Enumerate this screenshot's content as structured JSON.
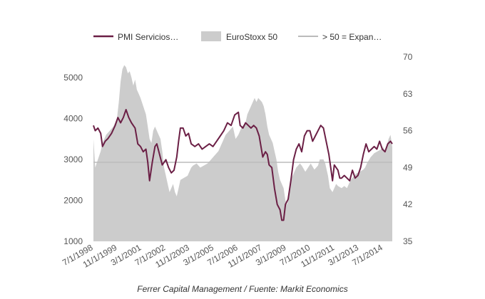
{
  "chart_data": {
    "type": "line",
    "title": "",
    "source": "Ferrer Capital Management / Fuente: Markit Economics",
    "legend": {
      "placement": "top",
      "entries": [
        {
          "label": "PMI Servicios…",
          "kind": "line",
          "color": "#6b1f45"
        },
        {
          "label": "EuroStoxx 50",
          "kind": "area",
          "color": "#cccccc"
        },
        {
          "label": "> 50 = Expan…",
          "kind": "line",
          "color": "#bbbbbb"
        }
      ]
    },
    "y_left": {
      "min": 1000,
      "max": 5500,
      "ticks": [
        "5000",
        "4000",
        "3000",
        "2000",
        "1000"
      ],
      "tick_values": [
        5000,
        4000,
        3000,
        2000,
        1000
      ]
    },
    "y_right": {
      "min": 35,
      "max": 70,
      "ticks": [
        "70",
        "63",
        "56",
        "49",
        "42",
        "35"
      ],
      "tick_values": [
        70,
        63,
        56,
        49,
        42,
        35
      ]
    },
    "x_ticks": [
      {
        "label": "7/1/1998",
        "t": 1998.5
      },
      {
        "label": "11/1/1999",
        "t": 1999.83
      },
      {
        "label": "3/1/2001",
        "t": 2001.17
      },
      {
        "label": "7/1/2002",
        "t": 2002.5
      },
      {
        "label": "11/1/2003",
        "t": 2003.83
      },
      {
        "label": "3/1/2005",
        "t": 2005.17
      },
      {
        "label": "7/1/2006",
        "t": 2006.5
      },
      {
        "label": "11/1/2007",
        "t": 2007.83
      },
      {
        "label": "3/1/2009",
        "t": 2009.17
      },
      {
        "label": "7/1/2010",
        "t": 2010.5
      },
      {
        "label": "11/1/2011",
        "t": 2011.83
      },
      {
        "label": "3/1/2013",
        "t": 2013.17
      },
      {
        "label": "7/1/2014",
        "t": 2014.5
      }
    ],
    "x_range": [
      1998.5,
      2015.0
    ],
    "threshold": {
      "axis": "right",
      "value": 50,
      "color": "#bbbbbb"
    },
    "series": [
      {
        "name": "EuroStoxx 50",
        "axis": "left",
        "style": "area",
        "color": "#cccccc",
        "x": [
          1998.5,
          1998.6,
          1998.75,
          1998.9,
          1999.0,
          1999.2,
          1999.4,
          1999.6,
          1999.8,
          1999.9,
          2000.0,
          2000.1,
          2000.2,
          2000.3,
          2000.4,
          2000.5,
          2000.6,
          2000.7,
          2000.8,
          2000.9,
          2001.0,
          2001.1,
          2001.25,
          2001.4,
          2001.5,
          2001.6,
          2001.7,
          2001.8,
          2001.9,
          2002.0,
          2002.1,
          2002.2,
          2002.3,
          2002.4,
          2002.5,
          2002.6,
          2002.7,
          2002.8,
          2002.9,
          2003.0,
          2003.1,
          2003.2,
          2003.3,
          2003.5,
          2003.7,
          2003.9,
          2004.0,
          2004.2,
          2004.4,
          2004.6,
          2004.8,
          2005.0,
          2005.2,
          2005.4,
          2005.6,
          2005.8,
          2006.0,
          2006.2,
          2006.35,
          2006.5,
          2006.7,
          2006.9,
          2007.0,
          2007.2,
          2007.4,
          2007.5,
          2007.6,
          2007.8,
          2007.9,
          2008.0,
          2008.1,
          2008.2,
          2008.3,
          2008.4,
          2008.5,
          2008.6,
          2008.7,
          2008.8,
          2008.9,
          2009.0,
          2009.1,
          2009.2,
          2009.3,
          2009.4,
          2009.5,
          2009.7,
          2009.9,
          2010.0,
          2010.2,
          2010.35,
          2010.5,
          2010.7,
          2010.9,
          2011.0,
          2011.2,
          2011.3,
          2011.45,
          2011.55,
          2011.7,
          2011.9,
          2012.0,
          2012.2,
          2012.35,
          2012.5,
          2012.7,
          2012.9,
          2013.0,
          2013.2,
          2013.4,
          2013.5,
          2013.6,
          2013.8,
          2013.9,
          2014.0,
          2014.2,
          2014.4,
          2014.5,
          2014.6,
          2014.8,
          2014.9,
          2015.0
        ],
        "values": [
          3500,
          2800,
          3000,
          3200,
          3400,
          3600,
          3700,
          3800,
          4000,
          4400,
          4900,
          5200,
          5300,
          5250,
          5100,
          5150,
          5000,
          4800,
          4950,
          4700,
          4600,
          4500,
          4300,
          4100,
          3800,
          3500,
          3400,
          3700,
          3800,
          3700,
          3600,
          3500,
          3200,
          2800,
          2600,
          2400,
          2200,
          2300,
          2400,
          2200,
          2100,
          2300,
          2500,
          2550,
          2600,
          2800,
          2850,
          2900,
          2800,
          2850,
          2900,
          3000,
          3100,
          3200,
          3400,
          3600,
          3700,
          3800,
          3500,
          3600,
          3800,
          3900,
          4100,
          4300,
          4500,
          4400,
          4500,
          4400,
          4300,
          4100,
          3800,
          3600,
          3500,
          3400,
          3200,
          3000,
          2700,
          2500,
          2400,
          2300,
          2000,
          1900,
          2100,
          2500,
          2600,
          2800,
          2900,
          2850,
          2700,
          2800,
          2900,
          2750,
          2850,
          3000,
          3000,
          2900,
          2600,
          2300,
          2200,
          2400,
          2350,
          2300,
          2350,
          2300,
          2500,
          2600,
          2650,
          2700,
          2750,
          2800,
          2900,
          3050,
          3100,
          3150,
          3200,
          3250,
          3300,
          3200,
          3500,
          3600,
          3300
        ]
      },
      {
        "name": "PMI Servicios…",
        "axis": "right",
        "style": "line",
        "color": "#6b1f45",
        "x": [
          1998.5,
          1998.6,
          1998.75,
          1998.9,
          1999.0,
          1999.15,
          1999.3,
          1999.5,
          1999.7,
          1999.85,
          2000.0,
          2000.15,
          2000.3,
          2000.45,
          2000.6,
          2000.8,
          2000.95,
          2001.1,
          2001.25,
          2001.4,
          2001.5,
          2001.6,
          2001.75,
          2001.9,
          2002.0,
          2002.15,
          2002.3,
          2002.5,
          2002.65,
          2002.8,
          2002.95,
          2003.1,
          2003.2,
          2003.3,
          2003.45,
          2003.6,
          2003.75,
          2003.9,
          2004.1,
          2004.3,
          2004.5,
          2004.7,
          2004.9,
          2005.1,
          2005.3,
          2005.5,
          2005.7,
          2005.9,
          2006.1,
          2006.3,
          2006.5,
          2006.6,
          2006.75,
          2006.9,
          2007.05,
          2007.2,
          2007.35,
          2007.5,
          2007.65,
          2007.75,
          2007.85,
          2008.0,
          2008.1,
          2008.2,
          2008.35,
          2008.5,
          2008.65,
          2008.8,
          2008.9,
          2009.0,
          2009.1,
          2009.25,
          2009.4,
          2009.55,
          2009.7,
          2009.85,
          2010.0,
          2010.15,
          2010.3,
          2010.45,
          2010.6,
          2010.75,
          2010.9,
          2011.05,
          2011.2,
          2011.35,
          2011.5,
          2011.6,
          2011.7,
          2011.8,
          2011.9,
          2012.0,
          2012.1,
          2012.2,
          2012.35,
          2012.5,
          2012.65,
          2012.8,
          2012.95,
          2013.1,
          2013.25,
          2013.4,
          2013.55,
          2013.7,
          2013.85,
          2014.0,
          2014.15,
          2014.3,
          2014.45,
          2014.6,
          2014.75,
          2014.9,
          2015.0
        ],
        "values": [
          57.0,
          56.0,
          56.5,
          55.5,
          53.0,
          54.0,
          54.5,
          55.5,
          57.0,
          58.5,
          57.5,
          58.5,
          60.0,
          58.5,
          57.5,
          56.5,
          53.5,
          53.0,
          52.0,
          52.5,
          50.0,
          46.5,
          50.0,
          53.0,
          53.5,
          51.5,
          49.5,
          50.5,
          49.0,
          48.0,
          48.5,
          51.0,
          54.0,
          56.5,
          56.5,
          55.0,
          55.5,
          53.5,
          53.0,
          53.5,
          52.5,
          53.0,
          53.5,
          53.0,
          54.0,
          55.0,
          56.0,
          57.5,
          57.0,
          59.0,
          59.5,
          57.0,
          56.5,
          57.5,
          57.0,
          56.5,
          57.0,
          56.5,
          55.0,
          53.0,
          51.0,
          52.0,
          51.5,
          49.5,
          49.0,
          45.0,
          42.0,
          41.0,
          39.0,
          39.0,
          42.0,
          43.0,
          46.5,
          50.5,
          52.5,
          53.5,
          52.0,
          55.0,
          56.0,
          56.0,
          54.0,
          55.0,
          56.0,
          57.0,
          56.5,
          54.0,
          51.5,
          49.0,
          46.5,
          49.5,
          49.0,
          48.5,
          47.0,
          47.0,
          47.5,
          47.0,
          46.5,
          48.5,
          47.0,
          47.5,
          49.0,
          51.5,
          53.5,
          52.0,
          52.5,
          53.0,
          52.5,
          54.0,
          52.5,
          52.0,
          53.5,
          54.0,
          53.5
        ]
      }
    ]
  }
}
